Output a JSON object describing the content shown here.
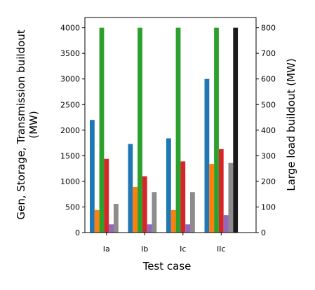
{
  "chart_data": {
    "type": "bar",
    "title": "",
    "xlabel": "Test case",
    "ylabel_left": [
      "Gen, Storage, Transmission buildout",
      "(MW)"
    ],
    "ylabel_right": "Large load buildout (MW)",
    "categories": [
      "Ia",
      "Ib",
      "Ic",
      "IIc"
    ],
    "ylim_left": [
      0,
      4200
    ],
    "ylim_right": [
      0,
      840
    ],
    "yticks_left": [
      0,
      500,
      1000,
      1500,
      2000,
      2500,
      3000,
      3500,
      4000
    ],
    "yticks_right": [
      0,
      100,
      200,
      300,
      400,
      500,
      600,
      700,
      800
    ],
    "grid": false,
    "legend": "none",
    "series": [
      {
        "color": "#1f77b4",
        "axis": "left",
        "values": [
          2200,
          1730,
          1840,
          3000
        ]
      },
      {
        "color": "#ff7f0e",
        "axis": "left",
        "values": [
          440,
          890,
          440,
          1340
        ]
      },
      {
        "color": "#2ca02c",
        "axis": "left",
        "values": [
          4000,
          4000,
          4000,
          4000
        ]
      },
      {
        "color": "#d62728",
        "axis": "left",
        "values": [
          1440,
          1100,
          1390,
          1630
        ]
      },
      {
        "color": "#9467bd",
        "axis": "left",
        "values": [
          160,
          160,
          160,
          340
        ]
      },
      {
        "color": "#8c8c8c",
        "axis": "left",
        "values": [
          560,
          790,
          790,
          1360
        ]
      },
      {
        "color": "#1a1a1a",
        "axis": "right",
        "values": [
          0,
          0,
          0,
          800
        ]
      }
    ]
  }
}
